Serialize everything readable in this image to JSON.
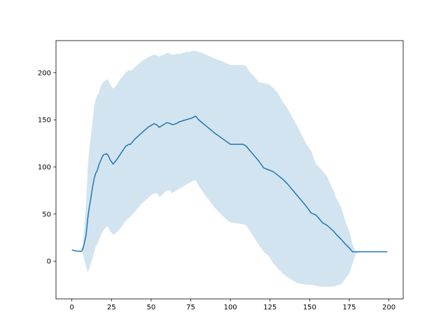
{
  "chart_data": {
    "type": "line",
    "title": "",
    "xlabel": "",
    "ylabel": "",
    "xlim": [
      -10,
      209
    ],
    "ylim": [
      -40,
      234
    ],
    "grid": false,
    "legend": "none",
    "x_ticks": [
      0,
      25,
      50,
      75,
      100,
      125,
      150,
      175,
      200
    ],
    "y_ticks": [
      0,
      50,
      100,
      150,
      200
    ],
    "x_tick_labels": [
      "0",
      "25",
      "50",
      "75",
      "100",
      "125",
      "150",
      "175",
      "200"
    ],
    "y_tick_labels": [
      "0",
      "50",
      "100",
      "150",
      "200"
    ],
    "colors": {
      "line": "#1f77b4",
      "band": "#1f77b4",
      "band_opacity": 0.2
    },
    "series": [
      {
        "kind": "mean_line",
        "x": [
          0,
          2,
          4,
          6,
          7,
          8,
          9,
          10,
          11,
          12,
          13,
          14,
          15,
          16,
          17,
          18,
          19,
          20,
          22,
          23,
          24,
          26,
          28,
          30,
          32,
          34,
          36,
          37,
          38,
          40,
          42,
          44,
          46,
          48,
          50,
          52,
          54,
          55,
          56,
          58,
          60,
          62,
          63,
          64,
          66,
          68,
          70,
          72,
          74,
          76,
          78,
          80,
          85,
          90,
          95,
          100,
          105,
          108,
          110,
          112,
          115,
          118,
          121,
          124,
          127,
          130,
          133,
          136,
          139,
          142,
          145,
          148,
          151,
          154,
          156,
          158,
          161,
          163,
          165,
          167,
          170,
          172,
          175,
          177,
          179,
          181,
          184,
          187,
          190,
          193,
          196,
          199
        ],
        "y": [
          12,
          11,
          10.5,
          10.5,
          13,
          20,
          28,
          45,
          57,
          67,
          78,
          87,
          93,
          96,
          102,
          106,
          110,
          113,
          114,
          112,
          108,
          103,
          107,
          112,
          117,
          122,
          124,
          124,
          126,
          130,
          133,
          136,
          139,
          142,
          144,
          146,
          144,
          142,
          143,
          145,
          147,
          146,
          145,
          145,
          146,
          148,
          149,
          150,
          151,
          152,
          154,
          150,
          143,
          136,
          130,
          124,
          124,
          124,
          122,
          118,
          112,
          106,
          99,
          97,
          95,
          91,
          87,
          82,
          76,
          70,
          64,
          58,
          51,
          49,
          45,
          41,
          38,
          35,
          32,
          28,
          23,
          19,
          14,
          10,
          10,
          10,
          10,
          10,
          10,
          10,
          10,
          10
        ]
      },
      {
        "kind": "band",
        "x": [
          0,
          2,
          4,
          6,
          7,
          8,
          9,
          10,
          11,
          12,
          13,
          14,
          15,
          16,
          17,
          18,
          19,
          20,
          22,
          23,
          24,
          26,
          28,
          30,
          32,
          34,
          36,
          37,
          38,
          40,
          42,
          44,
          46,
          48,
          50,
          52,
          54,
          55,
          56,
          58,
          60,
          62,
          63,
          64,
          66,
          68,
          70,
          72,
          74,
          76,
          78,
          80,
          85,
          90,
          95,
          100,
          105,
          108,
          110,
          112,
          115,
          118,
          121,
          124,
          127,
          130,
          133,
          136,
          139,
          142,
          145,
          148,
          151,
          154,
          156,
          158,
          161,
          163,
          165,
          167,
          170,
          172,
          175,
          177,
          179,
          181,
          184,
          187,
          190,
          193,
          196,
          199
        ],
        "lower": [
          12,
          11,
          10.5,
          10.5,
          8,
          0,
          -5,
          -12,
          -8,
          -2,
          3,
          9,
          15,
          18,
          22,
          26,
          30,
          33,
          37,
          36,
          32,
          28,
          30,
          34,
          38,
          43,
          46,
          47,
          49,
          53,
          57,
          61,
          64,
          67,
          70,
          72,
          72,
          68,
          69,
          72,
          75,
          75,
          72,
          73,
          75,
          77,
          79,
          81,
          83,
          85,
          86,
          80,
          68,
          57,
          48,
          41,
          40,
          39,
          38,
          33,
          25,
          17,
          10,
          6,
          -2,
          -8,
          -13,
          -17,
          -20,
          -23,
          -24,
          -25,
          -25,
          -26,
          -27,
          -27,
          -27,
          -27,
          -27,
          -26,
          -24,
          -20,
          -13,
          -3,
          8,
          9,
          9,
          10,
          10,
          10,
          10,
          10
        ],
        "upper": [
          12,
          11,
          10.5,
          10.5,
          18,
          40,
          60,
          98,
          120,
          132,
          148,
          163,
          172,
          176,
          178,
          185,
          188,
          190,
          193,
          192,
          188,
          183,
          186,
          192,
          196,
          200,
          203,
          202,
          203,
          206,
          209,
          212,
          214,
          216,
          218,
          219,
          218,
          217,
          218,
          219,
          221,
          220,
          219,
          219,
          220,
          220,
          221,
          222,
          222,
          223,
          223,
          222,
          219,
          215,
          212,
          208,
          208,
          208,
          207,
          201,
          196,
          190,
          189,
          188,
          184,
          178,
          169,
          162,
          153,
          144,
          134,
          124,
          117,
          103,
          100,
          96,
          90,
          82,
          75,
          66,
          57,
          45,
          32,
          18,
          10,
          9,
          9,
          10,
          10,
          10,
          10,
          10
        ]
      }
    ]
  }
}
